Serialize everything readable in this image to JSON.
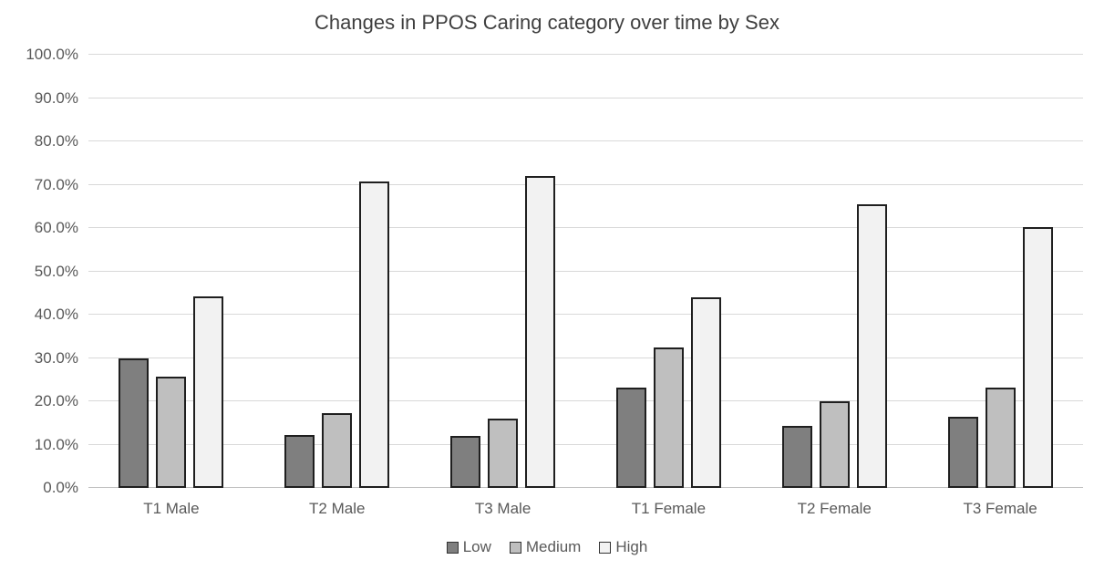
{
  "title": "Changes in PPOS Caring category over time by Sex",
  "chart_data": {
    "type": "bar",
    "title": "Changes in PPOS Caring category over time by Sex",
    "categories": [
      "T1 Male",
      "T2 Male",
      "T3 Male",
      "T1 Female",
      "T2 Female",
      "T3 Female"
    ],
    "series": [
      {
        "name": "Low",
        "color": "#7f7f7f",
        "values": [
          29.8,
          12.2,
          11.9,
          23.2,
          14.4,
          16.4
        ]
      },
      {
        "name": "Medium",
        "color": "#bfbfbf",
        "values": [
          25.7,
          17.2,
          16.0,
          32.4,
          20.1,
          23.2
        ]
      },
      {
        "name": "High",
        "color": "#f2f2f2",
        "values": [
          44.3,
          70.7,
          72.1,
          44.1,
          65.5,
          60.2
        ]
      }
    ],
    "xlabel": "",
    "ylabel": "",
    "ylim": [
      0,
      100
    ],
    "ytick_step": 10,
    "ytick_labels": [
      "0.0%",
      "10.0%",
      "20.0%",
      "30.0%",
      "40.0%",
      "50.0%",
      "60.0%",
      "70.0%",
      "80.0%",
      "90.0%",
      "100.0%"
    ],
    "grid": true,
    "legend_position": "bottom",
    "bar_border_color": "#1f1f1f",
    "gridline_color": "#d9d9d9",
    "text_color": "#595959",
    "title_color": "#3f3f3f",
    "background_color": "#ffffff"
  }
}
